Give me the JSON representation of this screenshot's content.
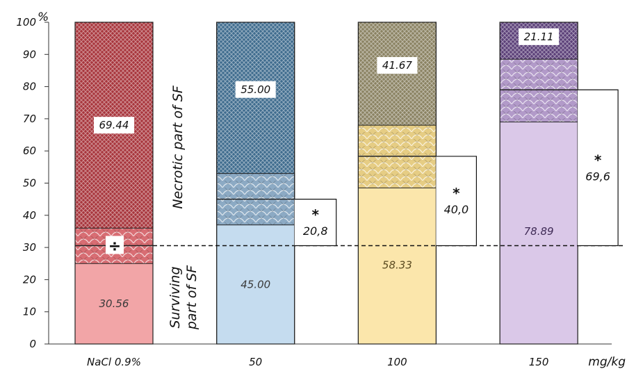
{
  "chart_data": {
    "type": "bar",
    "stacked": true,
    "y_unit": "%",
    "x_unit": "mg/kg",
    "ylim": [
      0,
      100
    ],
    "y_ticks": [
      0,
      10,
      20,
      30,
      40,
      50,
      60,
      70,
      80,
      90,
      100
    ],
    "categories": [
      "NaCl 0.9%",
      "50",
      "100",
      "150"
    ],
    "series": [
      {
        "name": "Surviving part of SF",
        "values": [
          30.56,
          45.0,
          58.33,
          78.89
        ]
      },
      {
        "name": "Necrotic part of SF",
        "values": [
          69.44,
          55.0,
          41.67,
          21.11
        ]
      }
    ],
    "value_labels": {
      "surviving": [
        "30.56",
        "45.00",
        "58.33",
        "78.89"
      ],
      "necrotic": [
        "69.44",
        "55.00",
        "41.67",
        "21.11"
      ]
    },
    "baseline_value": 30.56,
    "baseline_symbol": "÷",
    "increase_annotations": [
      {
        "category": "50",
        "star": "*",
        "label": "20,8",
        "top": 45.0
      },
      {
        "category": "100",
        "star": "*",
        "label": "40,0",
        "top": 58.33
      },
      {
        "category": "150",
        "star": "*",
        "label": "69,6",
        "top": 79.0
      }
    ],
    "transition_bands": [
      {
        "category": "NaCl 0.9%",
        "from": 25.0,
        "to": 36.0,
        "lines": [
          30.56
        ]
      },
      {
        "category": "50",
        "from": 37.0,
        "to": 53.0,
        "lines": [
          45.0
        ]
      },
      {
        "category": "100",
        "from": 48.5,
        "to": 68.0,
        "lines": [
          58.33
        ]
      },
      {
        "category": "150",
        "from": 69.0,
        "to": 88.5,
        "lines": [
          79.0
        ]
      }
    ],
    "colors": {
      "surviving": [
        "#f2a5a7",
        "#c5dcef",
        "#fbe6ab",
        "#dac8e8"
      ],
      "necrotic": [
        "#a8353c",
        "#3f6c8e",
        "#8a8262",
        "#5b3f78"
      ],
      "band": [
        "#d86d73",
        "#8caac4",
        "#e6cd84",
        "#b29ac9"
      ]
    },
    "side_labels": {
      "necrotic": "Necrotic part of SF",
      "surviving_line1": "Surviving",
      "surviving_line2": "part of SF"
    },
    "grid": false,
    "legend": "none"
  }
}
